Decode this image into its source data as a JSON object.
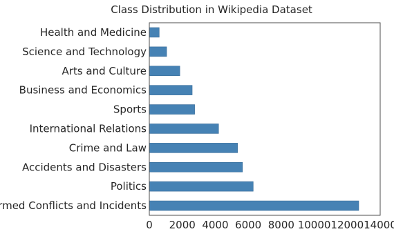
{
  "chart_data": {
    "type": "bar",
    "orientation": "horizontal",
    "title": "Class Distribution in Wikipedia Dataset",
    "xlabel": "",
    "ylabel": "",
    "categories": [
      "Health and Medicine",
      "Science and Technology",
      "Arts and Culture",
      "Business and Economics",
      "Sports",
      "International Relations",
      "Crime and Law",
      "Accidents and Disasters",
      "Politics",
      "Armed Conflicts and Incidents"
    ],
    "values": [
      600,
      1050,
      1850,
      2600,
      2750,
      4200,
      5350,
      5650,
      6300,
      12700
    ],
    "xlim": [
      0,
      14000
    ],
    "xticks": [
      0,
      2000,
      4000,
      6000,
      8000,
      10000,
      12000,
      14000
    ],
    "grid": false,
    "colors": {
      "bar": "#4682b4",
      "bar_edge": "#3a6d99",
      "frame": "#4d4d4d"
    }
  }
}
